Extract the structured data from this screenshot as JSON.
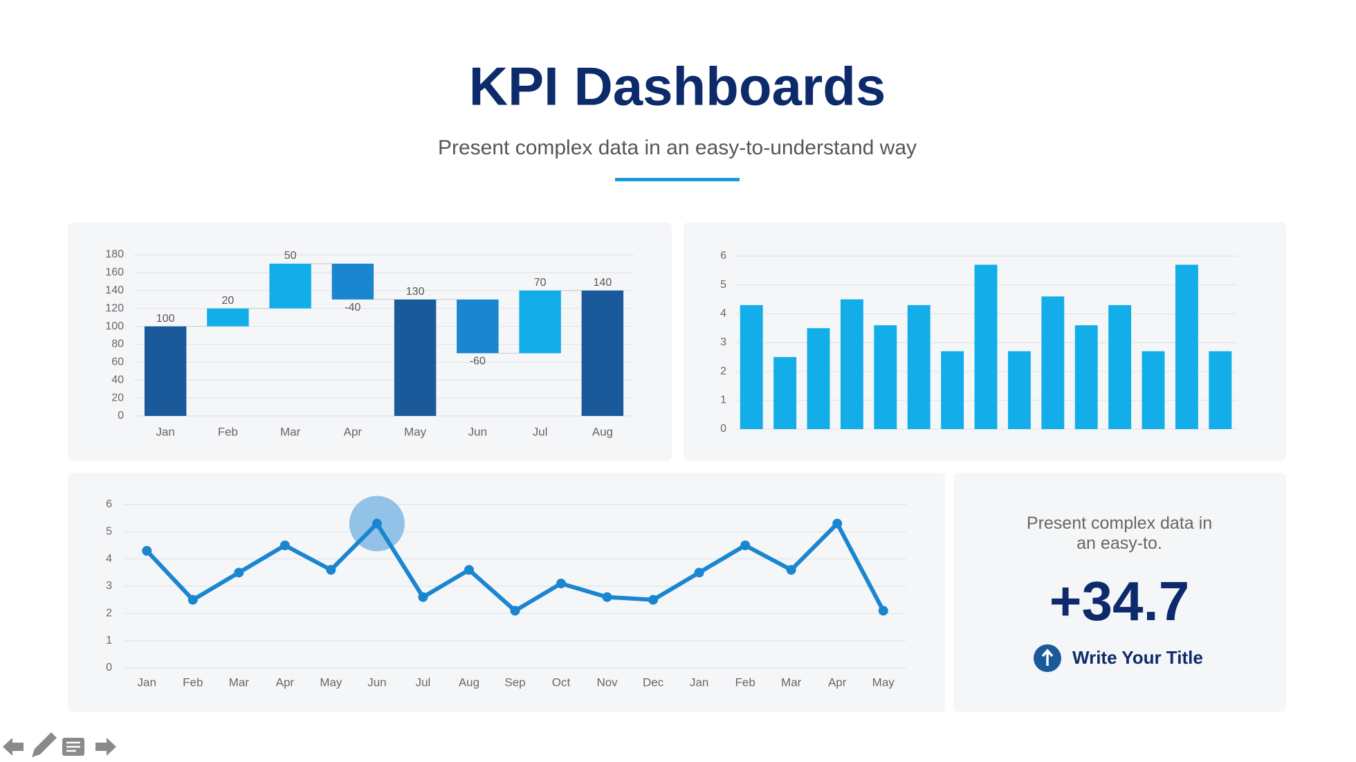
{
  "header": {
    "title": "KPI Dashboards",
    "subtitle": "Present complex data in an easy-to-understand way"
  },
  "chart_data": [
    {
      "type": "waterfall",
      "categories": [
        "Jan",
        "Feb",
        "Mar",
        "Apr",
        "May",
        "Jun",
        "Jul",
        "Aug"
      ],
      "values": [
        100,
        20,
        50,
        -40,
        130,
        -60,
        70,
        140
      ],
      "is_total": [
        true,
        false,
        false,
        false,
        true,
        false,
        false,
        true
      ],
      "colors": {
        "total": "#1a5a9a",
        "increase": "#13aee9",
        "decrease": "#1a86d0"
      },
      "ylim": [
        0,
        180
      ],
      "yticks": [
        0,
        20,
        40,
        60,
        80,
        100,
        120,
        140,
        160,
        180
      ],
      "grid": true
    },
    {
      "type": "bar",
      "categories": [
        null,
        null,
        null,
        null,
        null,
        null,
        null,
        null,
        null,
        null,
        null,
        null,
        null,
        null,
        null
      ],
      "values": [
        4.3,
        2.5,
        3.5,
        4.5,
        3.6,
        4.3,
        2.7,
        5.7,
        2.7,
        4.6,
        3.6,
        4.3,
        2.7,
        5.7,
        2.7
      ],
      "color": "#13aee9",
      "ylim": [
        0,
        6
      ],
      "yticks": [
        0,
        1,
        2,
        3,
        4,
        5,
        6
      ],
      "grid": true
    },
    {
      "type": "line",
      "categories": [
        "Jan",
        "Feb",
        "Mar",
        "Apr",
        "May",
        "Jun",
        "Jul",
        "Aug",
        "Sep",
        "Oct",
        "Nov",
        "Dec",
        "Jan",
        "Feb",
        "Mar",
        "Apr",
        "May"
      ],
      "values": [
        4.3,
        2.5,
        3.5,
        4.5,
        3.6,
        5.3,
        2.6,
        3.6,
        2.1,
        3.1,
        2.6,
        2.5,
        3.5,
        4.5,
        3.6,
        5.3,
        2.1
      ],
      "color": "#1a86d0",
      "highlight": 5,
      "highlight_color": "#80b8e4",
      "ylim": [
        0,
        6
      ],
      "yticks": [
        0,
        1,
        2,
        3,
        4,
        5,
        6
      ],
      "grid": true
    }
  ],
  "kpi": {
    "caption": "Present complex data in an easy-to.",
    "value": "+34.7",
    "label": "Write Your Title"
  }
}
